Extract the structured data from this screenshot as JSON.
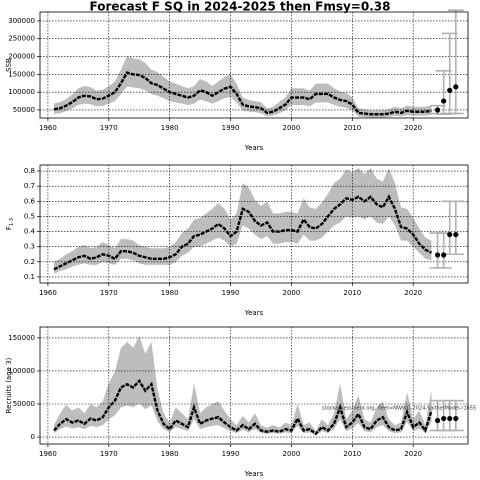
{
  "chart_data": [
    {
      "type": "line",
      "title": "Forecast F SQ in 2024-2025 then Fmsy=0.38",
      "xlabel": "Years",
      "ylabel": "SSB",
      "color": "#000000",
      "band_color": "#bdbdbd",
      "forecast_color": "#000000",
      "forecast_bar_color": "#b0b0b0",
      "grid": true,
      "xlim": [
        1958.7,
        2029.0
      ],
      "xticks": [
        1960,
        1970,
        1980,
        1990,
        2000,
        2010,
        2020
      ],
      "ylim": [
        27500,
        325000
      ],
      "yticks": [
        50000,
        100000,
        150000,
        200000,
        250000,
        300000
      ],
      "x": [
        1961,
        1962,
        1963,
        1964,
        1965,
        1966,
        1967,
        1968,
        1969,
        1970,
        1971,
        1972,
        1973,
        1974,
        1975,
        1976,
        1977,
        1978,
        1979,
        1980,
        1981,
        1982,
        1983,
        1984,
        1985,
        1986,
        1987,
        1988,
        1989,
        1990,
        1991,
        1992,
        1993,
        1994,
        1995,
        1996,
        1997,
        1998,
        1999,
        2000,
        2001,
        2002,
        2003,
        2004,
        2005,
        2006,
        2007,
        2008,
        2009,
        2010,
        2011,
        2012,
        2013,
        2014,
        2015,
        2016,
        2017,
        2018,
        2019,
        2020,
        2021,
        2022,
        2023
      ],
      "values": [
        52000,
        55000,
        62000,
        72000,
        85000,
        90000,
        88000,
        80000,
        82000,
        90000,
        100000,
        125000,
        155000,
        150000,
        148000,
        140000,
        125000,
        120000,
        110000,
        100000,
        95000,
        90000,
        85000,
        90000,
        105000,
        100000,
        90000,
        100000,
        110000,
        115000,
        95000,
        65000,
        60000,
        58000,
        55000,
        42000,
        45000,
        55000,
        65000,
        85000,
        85000,
        85000,
        80000,
        95000,
        95000,
        95000,
        85000,
        78000,
        75000,
        65000,
        42000,
        40000,
        38000,
        38000,
        38000,
        40000,
        45000,
        42000,
        48000,
        45000,
        45000,
        45000,
        48000
      ],
      "lower": [
        39000,
        41000,
        47000,
        54000,
        64000,
        68000,
        66000,
        60000,
        62000,
        68000,
        75000,
        94000,
        116000,
        113000,
        111000,
        105000,
        94000,
        90000,
        83000,
        75000,
        71000,
        68000,
        64000,
        68000,
        79000,
        75000,
        68000,
        75000,
        83000,
        86000,
        71000,
        49000,
        45000,
        44000,
        41000,
        32000,
        34000,
        41000,
        49000,
        64000,
        64000,
        64000,
        60000,
        71000,
        71000,
        71000,
        64000,
        59000,
        56000,
        49000,
        32000,
        30000,
        29000,
        29000,
        29000,
        30000,
        34000,
        32000,
        36000,
        34000,
        34000,
        34000,
        36000
      ],
      "upper": [
        68000,
        72000,
        81000,
        94000,
        111000,
        117000,
        114000,
        104000,
        107000,
        117000,
        130000,
        163000,
        202000,
        195000,
        192000,
        182000,
        163000,
        156000,
        143000,
        130000,
        124000,
        117000,
        111000,
        117000,
        137000,
        130000,
        117000,
        130000,
        143000,
        150000,
        124000,
        85000,
        78000,
        75000,
        72000,
        55000,
        59000,
        72000,
        85000,
        111000,
        111000,
        111000,
        104000,
        124000,
        124000,
        124000,
        111000,
        101000,
        98000,
        85000,
        55000,
        52000,
        49000,
        49000,
        49000,
        52000,
        59000,
        55000,
        62000,
        59000,
        59000,
        59000,
        62000
      ],
      "forecast": {
        "x": [
          2024,
          2025,
          2026,
          2027
        ],
        "values": [
          50000,
          75000,
          105000,
          115000
        ],
        "lower": [
          40000,
          38000,
          40000,
          40000
        ],
        "upper": [
          62000,
          160000,
          265000,
          330000
        ]
      }
    },
    {
      "type": "line",
      "xlabel": "Years",
      "ylabel": "F",
      "ylabel_sub": "1-3",
      "color": "#000000",
      "band_color": "#bdbdbd",
      "forecast_color": "#000000",
      "forecast_bar_color": "#b0b0b0",
      "grid": true,
      "xlim": [
        1958.7,
        2029.0
      ],
      "xticks": [
        1960,
        1970,
        1980,
        1990,
        2000,
        2010,
        2020
      ],
      "ylim": [
        0.06,
        0.84
      ],
      "yticks": [
        0.1,
        0.2,
        0.3,
        0.4,
        0.5,
        0.6,
        0.7,
        0.8
      ],
      "x": [
        1961,
        1962,
        1963,
        1964,
        1965,
        1966,
        1967,
        1968,
        1969,
        1970,
        1971,
        1972,
        1973,
        1974,
        1975,
        1976,
        1977,
        1978,
        1979,
        1980,
        1981,
        1982,
        1983,
        1984,
        1985,
        1986,
        1987,
        1988,
        1989,
        1990,
        1991,
        1992,
        1993,
        1994,
        1995,
        1996,
        1997,
        1998,
        1999,
        2000,
        2001,
        2002,
        2003,
        2004,
        2005,
        2006,
        2007,
        2008,
        2009,
        2010,
        2011,
        2012,
        2013,
        2014,
        2015,
        2016,
        2017,
        2018,
        2019,
        2020,
        2021,
        2022,
        2023
      ],
      "values": [
        0.15,
        0.17,
        0.19,
        0.21,
        0.23,
        0.24,
        0.22,
        0.23,
        0.25,
        0.24,
        0.22,
        0.27,
        0.27,
        0.26,
        0.24,
        0.23,
        0.22,
        0.22,
        0.22,
        0.23,
        0.25,
        0.3,
        0.32,
        0.37,
        0.38,
        0.4,
        0.42,
        0.45,
        0.42,
        0.37,
        0.4,
        0.55,
        0.53,
        0.47,
        0.44,
        0.46,
        0.4,
        0.4,
        0.41,
        0.41,
        0.4,
        0.48,
        0.43,
        0.42,
        0.45,
        0.5,
        0.55,
        0.58,
        0.62,
        0.61,
        0.63,
        0.6,
        0.63,
        0.58,
        0.56,
        0.63,
        0.55,
        0.43,
        0.42,
        0.38,
        0.32,
        0.28,
        0.26
      ],
      "lower": [
        0.12,
        0.14,
        0.15,
        0.17,
        0.18,
        0.19,
        0.18,
        0.18,
        0.2,
        0.19,
        0.18,
        0.22,
        0.22,
        0.21,
        0.19,
        0.18,
        0.18,
        0.18,
        0.18,
        0.18,
        0.2,
        0.24,
        0.26,
        0.3,
        0.3,
        0.32,
        0.34,
        0.36,
        0.34,
        0.3,
        0.32,
        0.44,
        0.42,
        0.38,
        0.35,
        0.37,
        0.32,
        0.32,
        0.33,
        0.33,
        0.32,
        0.38,
        0.34,
        0.34,
        0.36,
        0.4,
        0.44,
        0.46,
        0.5,
        0.49,
        0.5,
        0.48,
        0.5,
        0.46,
        0.45,
        0.5,
        0.44,
        0.34,
        0.34,
        0.3,
        0.26,
        0.22,
        0.21
      ],
      "upper": [
        0.2,
        0.22,
        0.25,
        0.27,
        0.3,
        0.31,
        0.29,
        0.3,
        0.33,
        0.31,
        0.29,
        0.35,
        0.35,
        0.34,
        0.31,
        0.3,
        0.29,
        0.29,
        0.29,
        0.3,
        0.33,
        0.39,
        0.42,
        0.48,
        0.49,
        0.52,
        0.55,
        0.59,
        0.55,
        0.48,
        0.52,
        0.72,
        0.69,
        0.61,
        0.57,
        0.6,
        0.52,
        0.52,
        0.53,
        0.53,
        0.52,
        0.62,
        0.56,
        0.55,
        0.59,
        0.65,
        0.72,
        0.75,
        0.81,
        0.79,
        0.82,
        0.78,
        0.82,
        0.75,
        0.73,
        0.82,
        0.72,
        0.56,
        0.55,
        0.49,
        0.42,
        0.36,
        0.34
      ],
      "forecast": {
        "x": [
          2024,
          2025,
          2026,
          2027
        ],
        "values": [
          0.245,
          0.245,
          0.38,
          0.38
        ],
        "lower": [
          0.16,
          0.16,
          0.25,
          0.25
        ],
        "upper": [
          0.39,
          0.39,
          0.6,
          0.6
        ]
      }
    },
    {
      "type": "line",
      "xlabel": "Years",
      "ylabel": "Recruits (age 3)",
      "annotation": "stockassessment.org, fleet=NWWG-2024-Saithe/Model-r1655",
      "color": "#000000",
      "band_color": "#bdbdbd",
      "forecast_color": "#000000",
      "forecast_bar_color": "#b0b0b0",
      "grid": true,
      "xlim": [
        1958.7,
        2029.0
      ],
      "xticks": [
        1960,
        1970,
        1980,
        1990,
        2000,
        2010,
        2020
      ],
      "ylim": [
        -10500,
        166500
      ],
      "yticks": [
        0,
        50000,
        100000,
        150000
      ],
      "x": [
        1961,
        1962,
        1963,
        1964,
        1965,
        1966,
        1967,
        1968,
        1969,
        1970,
        1971,
        1972,
        1973,
        1974,
        1975,
        1976,
        1977,
        1978,
        1979,
        1980,
        1981,
        1982,
        1983,
        1984,
        1985,
        1986,
        1987,
        1988,
        1989,
        1990,
        1991,
        1992,
        1993,
        1994,
        1995,
        1996,
        1997,
        1998,
        1999,
        2000,
        2001,
        2002,
        2003,
        2004,
        2005,
        2006,
        2007,
        2008,
        2009,
        2010,
        2011,
        2012,
        2013,
        2014,
        2015,
        2016,
        2017,
        2018,
        2019,
        2020,
        2021,
        2022,
        2023
      ],
      "values": [
        10000,
        20000,
        27000,
        22000,
        25000,
        20000,
        28000,
        25000,
        30000,
        45000,
        55000,
        75000,
        80000,
        75000,
        85000,
        70000,
        80000,
        40000,
        20000,
        12000,
        25000,
        20000,
        15000,
        45000,
        20000,
        25000,
        28000,
        30000,
        22000,
        15000,
        10000,
        18000,
        12000,
        20000,
        10000,
        8000,
        10000,
        8000,
        12000,
        10000,
        28000,
        10000,
        12000,
        5000,
        15000,
        10000,
        20000,
        45000,
        15000,
        22000,
        35000,
        15000,
        12000,
        25000,
        30000,
        15000,
        10000,
        12000,
        38000,
        15000,
        22000,
        10000,
        40000
      ],
      "lower": [
        6000,
        12000,
        16000,
        13000,
        15000,
        12000,
        17000,
        15000,
        18000,
        27000,
        33000,
        45000,
        48000,
        45000,
        51000,
        42000,
        48000,
        24000,
        12000,
        7000,
        15000,
        12000,
        9000,
        27000,
        12000,
        15000,
        17000,
        18000,
        13000,
        9000,
        6000,
        11000,
        7000,
        12000,
        6000,
        5000,
        6000,
        5000,
        7000,
        6000,
        17000,
        6000,
        7000,
        3000,
        9000,
        6000,
        12000,
        27000,
        9000,
        13000,
        21000,
        9000,
        7000,
        15000,
        18000,
        9000,
        6000,
        7000,
        23000,
        9000,
        13000,
        6000,
        24000
      ],
      "upper": [
        18000,
        36000,
        49000,
        40000,
        45000,
        36000,
        50000,
        45000,
        54000,
        81000,
        99000,
        135000,
        144000,
        135000,
        153000,
        126000,
        144000,
        72000,
        36000,
        22000,
        45000,
        36000,
        27000,
        81000,
        36000,
        45000,
        50000,
        54000,
        40000,
        27000,
        18000,
        32000,
        22000,
        36000,
        18000,
        14000,
        18000,
        14000,
        22000,
        18000,
        50000,
        18000,
        22000,
        9000,
        27000,
        18000,
        36000,
        81000,
        27000,
        40000,
        63000,
        27000,
        22000,
        45000,
        54000,
        27000,
        18000,
        22000,
        68000,
        27000,
        40000,
        18000,
        72000
      ],
      "forecast": {
        "x": [
          2024,
          2025,
          2026,
          2027
        ],
        "values": [
          25000,
          28000,
          28000,
          28000
        ],
        "lower": [
          10000,
          10000,
          10000,
          10000
        ],
        "upper": [
          55000,
          55000,
          55000,
          55000
        ]
      }
    }
  ]
}
